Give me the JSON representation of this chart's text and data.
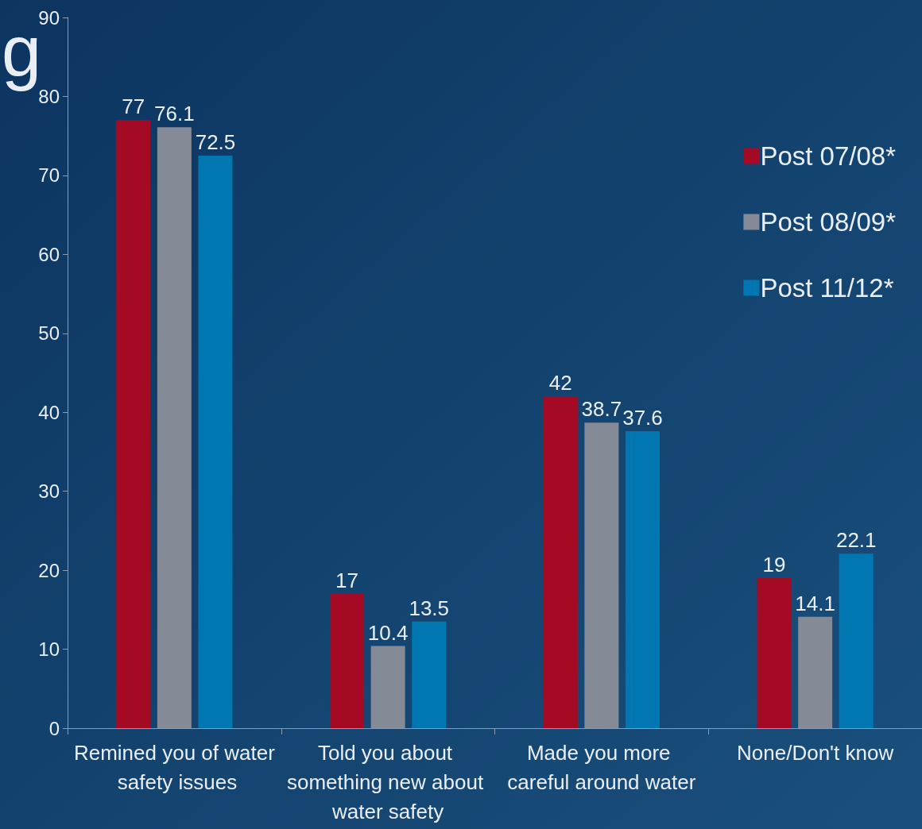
{
  "chart_data": {
    "type": "bar",
    "annotations": [
      "g"
    ],
    "categories": [
      "Remined you of water safety issues",
      "Told you about something new about water safety",
      "Made you more careful around water",
      "None/Don't know"
    ],
    "series": [
      {
        "name": "Post 07/08*",
        "color": "#a50a24",
        "values": [
          77,
          17,
          42,
          19
        ]
      },
      {
        "name": "Post 08/09*",
        "color": "#848a96",
        "values": [
          76.1,
          10.4,
          38.7,
          14.1
        ]
      },
      {
        "name": "Post 11/12*",
        "color": "#0077b0",
        "values": [
          72.5,
          13.5,
          37.6,
          22.1
        ]
      }
    ],
    "ylim": [
      0,
      90
    ],
    "yticks": [
      0,
      10,
      20,
      30,
      40,
      50,
      60,
      70,
      80,
      90
    ],
    "data_labels": true,
    "grid": false,
    "legend": "top right"
  }
}
